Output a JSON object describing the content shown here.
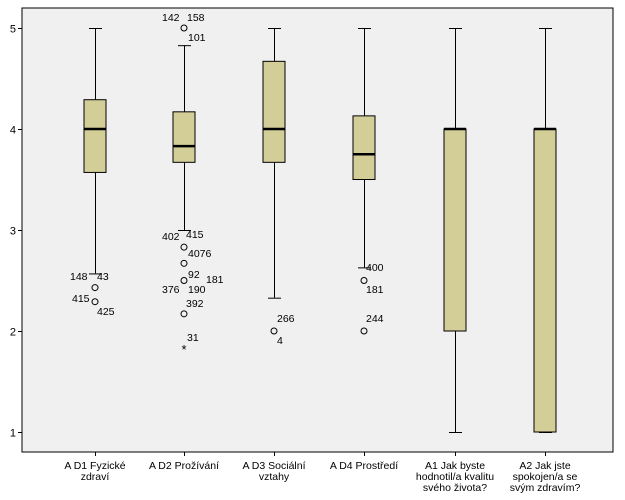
{
  "chart_data": {
    "type": "boxplot",
    "title": "",
    "xlabel": "",
    "ylabel": "",
    "ylim": [
      0.75,
      5.2
    ],
    "yticks": [
      1,
      2,
      3,
      4,
      5
    ],
    "grid": false,
    "colors": {
      "plot_bg": "#f0f0f0",
      "box_fill": "#d3ce97",
      "stroke": "#000000"
    },
    "categories": [
      "A D1 Fyzické\nzdraví",
      "A D2 Prožívání",
      "A D3 Sociální\nvztahy",
      "A D4 Prostředí",
      "A1 Jak byste\nhodnotil/a kvalitu\nsvého života?",
      "A2 Jak jste\nspokojen/a se\nsvým zdravím?"
    ],
    "boxes": [
      {
        "whisker_low": 2.57,
        "q1": 3.57,
        "median": 4.0,
        "q3": 4.29,
        "whisker_high": 5.0,
        "outliers": [
          {
            "y": 2.43,
            "marker": "circle",
            "labels": [
              "148",
              "43"
            ]
          },
          {
            "y": 2.29,
            "marker": "circle",
            "labels": [
              "415",
              "425"
            ]
          }
        ]
      },
      {
        "whisker_low": 3.0,
        "q1": 3.67,
        "median": 3.83,
        "q3": 4.17,
        "whisker_high": 4.83,
        "outliers": [
          {
            "y": 5.0,
            "marker": "circle",
            "labels": [
              "142",
              "158"
            ]
          },
          {
            "y": 4.83,
            "marker": "none",
            "labels": [
              "101"
            ]
          },
          {
            "y": 2.83,
            "marker": "circle",
            "labels": [
              "402",
              "415"
            ]
          },
          {
            "y": 2.67,
            "marker": "circle",
            "labels": [
              "4076"
            ]
          },
          {
            "y": 2.5,
            "marker": "circle",
            "labels": [
              "92",
              "181"
            ]
          },
          {
            "y": 2.5,
            "marker": "none",
            "labels": [
              "376",
              "190"
            ]
          },
          {
            "y": 2.17,
            "marker": "circle",
            "labels": [
              "392"
            ]
          },
          {
            "y": 1.83,
            "marker": "star",
            "labels": [
              "31"
            ]
          }
        ]
      },
      {
        "whisker_low": 2.33,
        "q1": 3.67,
        "median": 4.0,
        "q3": 4.67,
        "whisker_high": 5.0,
        "outliers": [
          {
            "y": 2.0,
            "marker": "circle",
            "labels": [
              "266",
              "4"
            ]
          }
        ]
      },
      {
        "whisker_low": 2.63,
        "q1": 3.5,
        "median": 3.75,
        "q3": 4.13,
        "whisker_high": 5.0,
        "outliers": [
          {
            "y": 2.63,
            "marker": "none",
            "labels": [
              "400"
            ]
          },
          {
            "y": 2.5,
            "marker": "circle",
            "labels": [
              "181"
            ]
          },
          {
            "y": 2.0,
            "marker": "circle",
            "labels": [
              "244"
            ]
          }
        ]
      },
      {
        "whisker_low": 1.0,
        "q1": 2.0,
        "median": 4.0,
        "q3": 4.0,
        "whisker_high": 5.0,
        "outliers": []
      },
      {
        "whisker_low": 1.0,
        "q1": 1.0,
        "median": 4.0,
        "q3": 4.0,
        "whisker_high": 5.0,
        "outliers": []
      }
    ]
  }
}
